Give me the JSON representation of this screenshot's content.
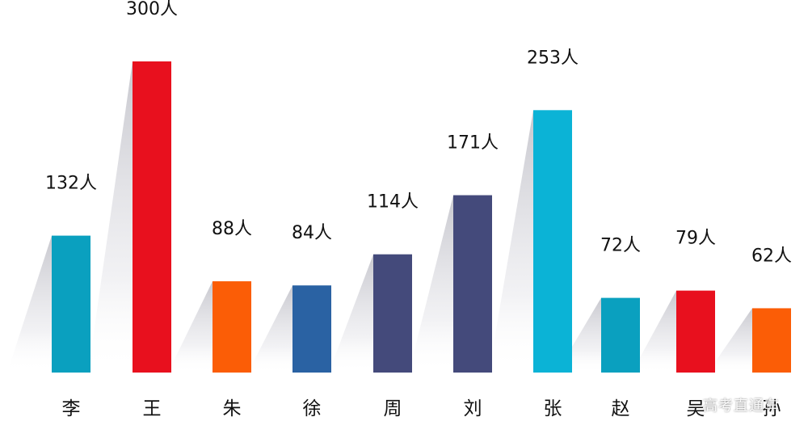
{
  "chart_data": {
    "type": "bar",
    "categories": [
      "李",
      "王",
      "朱",
      "徐",
      "周",
      "刘",
      "张",
      "赵",
      "吴",
      "孙"
    ],
    "values": [
      132,
      300,
      88,
      84,
      114,
      171,
      253,
      72,
      79,
      62
    ],
    "value_labels": [
      "132人",
      "300人",
      "88人",
      "84人",
      "114人",
      "171人",
      "253人",
      "72人",
      "79人",
      "62人"
    ],
    "bar_colors": [
      "#0aa0bf",
      "#e8101e",
      "#fb5d06",
      "#2a62a3",
      "#444a7b",
      "#444a7b",
      "#0bb3d6",
      "#0aa0bf",
      "#e8101e",
      "#fb5d06"
    ],
    "title": "",
    "xlabel": "",
    "ylabel": "",
    "grid": false,
    "legend": "none"
  },
  "watermark": {
    "text": "高考直通车"
  }
}
